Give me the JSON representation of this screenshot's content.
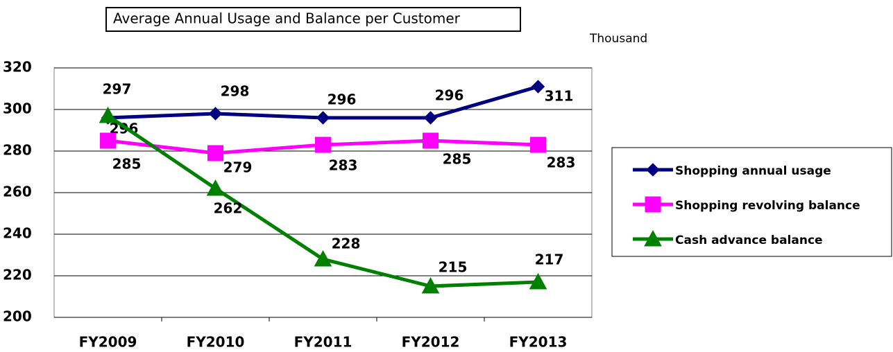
{
  "chart_data": {
    "type": "line",
    "title": "Average Annual Usage and Balance per Customer",
    "unit_label": "Thousand",
    "categories": [
      "FY2009",
      "FY2010",
      "FY2011",
      "FY2012",
      "FY2013"
    ],
    "series": [
      {
        "name": "Shopping annual usage",
        "color": "#000080",
        "marker": "diamond",
        "values": [
          296,
          298,
          296,
          296,
          311
        ]
      },
      {
        "name": "Shopping revolving balance",
        "color": "#ff00ff",
        "marker": "square",
        "values": [
          285,
          279,
          283,
          285,
          283
        ]
      },
      {
        "name": "Cash advance balance",
        "color": "#008000",
        "marker": "triangle",
        "values": [
          297,
          262,
          228,
          215,
          217
        ]
      }
    ],
    "ylim": [
      200,
      320
    ],
    "yticks": [
      200,
      220,
      240,
      260,
      280,
      300,
      320
    ],
    "grid": true,
    "legend": "right"
  }
}
